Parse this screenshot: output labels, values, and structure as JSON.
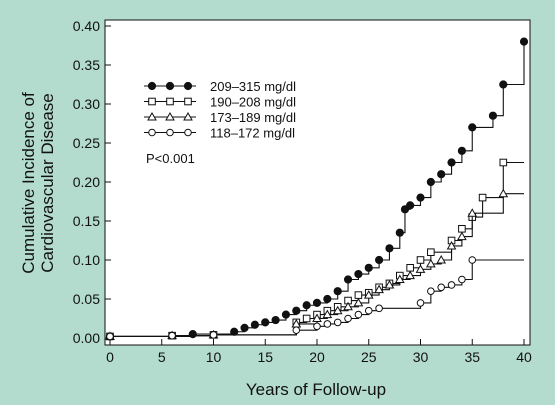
{
  "chart_data": {
    "type": "line",
    "step": true,
    "ylabel_line1": "Cumulative Incidence of",
    "ylabel_line2": "Cardiovascular Disease",
    "xlabel": "Years of Follow-up",
    "xlim": [
      0,
      40
    ],
    "ylim": [
      0,
      0.4
    ],
    "xticks": [
      "0",
      "5",
      "10",
      "15",
      "20",
      "25",
      "30",
      "35",
      "40"
    ],
    "yticks": [
      "0.00",
      "0.05",
      "0.10",
      "0.15",
      "0.20",
      "0.25",
      "0.30",
      "0.35",
      "0.40"
    ],
    "annotation": "P<0.001",
    "legend_position": "top-left",
    "series": [
      {
        "name": "209–315 mg/dl",
        "marker": "filled-circle",
        "points": [
          [
            0,
            0.002
          ],
          [
            8,
            0.005
          ],
          [
            12,
            0.008
          ],
          [
            13,
            0.013
          ],
          [
            14,
            0.017
          ],
          [
            15,
            0.02
          ],
          [
            16,
            0.023
          ],
          [
            17,
            0.03
          ],
          [
            18,
            0.035
          ],
          [
            19,
            0.042
          ],
          [
            20,
            0.045
          ],
          [
            21,
            0.05
          ],
          [
            22,
            0.06
          ],
          [
            23,
            0.075
          ],
          [
            24,
            0.082
          ],
          [
            25,
            0.09
          ],
          [
            26,
            0.1
          ],
          [
            27,
            0.115
          ],
          [
            28,
            0.135
          ],
          [
            28.5,
            0.165
          ],
          [
            29,
            0.17
          ],
          [
            30,
            0.18
          ],
          [
            31,
            0.2
          ],
          [
            32,
            0.21
          ],
          [
            33,
            0.225
          ],
          [
            34,
            0.24
          ],
          [
            35,
            0.27
          ],
          [
            37,
            0.285
          ],
          [
            38,
            0.325
          ],
          [
            40,
            0.38
          ]
        ]
      },
      {
        "name": "190–208 mg/dl",
        "marker": "open-square",
        "points": [
          [
            0,
            0.002
          ],
          [
            6,
            0.003
          ],
          [
            10,
            0.004
          ],
          [
            18,
            0.02
          ],
          [
            19,
            0.025
          ],
          [
            20,
            0.03
          ],
          [
            21,
            0.035
          ],
          [
            22,
            0.04
          ],
          [
            23,
            0.048
          ],
          [
            24,
            0.055
          ],
          [
            25,
            0.058
          ],
          [
            26,
            0.065
          ],
          [
            27,
            0.07
          ],
          [
            28,
            0.08
          ],
          [
            29,
            0.09
          ],
          [
            30,
            0.1
          ],
          [
            31,
            0.11
          ],
          [
            33,
            0.125
          ],
          [
            34,
            0.14
          ],
          [
            35,
            0.155
          ],
          [
            36,
            0.18
          ],
          [
            38,
            0.225
          ],
          [
            40,
            0.225
          ]
        ]
      },
      {
        "name": "173–189 mg/dl",
        "marker": "open-triangle",
        "points": [
          [
            0,
            0.002
          ],
          [
            6,
            0.003
          ],
          [
            10,
            0.004
          ],
          [
            18,
            0.018
          ],
          [
            20,
            0.025
          ],
          [
            21,
            0.03
          ],
          [
            22,
            0.035
          ],
          [
            23,
            0.04
          ],
          [
            24,
            0.045
          ],
          [
            25,
            0.055
          ],
          [
            26,
            0.062
          ],
          [
            27,
            0.068
          ],
          [
            28,
            0.075
          ],
          [
            29,
            0.08
          ],
          [
            30,
            0.088
          ],
          [
            31,
            0.095
          ],
          [
            32,
            0.1
          ],
          [
            33,
            0.118
          ],
          [
            34,
            0.13
          ],
          [
            35,
            0.16
          ],
          [
            38,
            0.185
          ],
          [
            40,
            0.185
          ]
        ]
      },
      {
        "name": "118–172 mg/dl",
        "marker": "open-circle",
        "points": [
          [
            0,
            0.002
          ],
          [
            6,
            0.003
          ],
          [
            10,
            0.004
          ],
          [
            18,
            0.01
          ],
          [
            20,
            0.015
          ],
          [
            21,
            0.018
          ],
          [
            22,
            0.02
          ],
          [
            23,
            0.025
          ],
          [
            24,
            0.03
          ],
          [
            25,
            0.035
          ],
          [
            26,
            0.038
          ],
          [
            30,
            0.045
          ],
          [
            31,
            0.06
          ],
          [
            32,
            0.065
          ],
          [
            33,
            0.068
          ],
          [
            34,
            0.075
          ],
          [
            35,
            0.1
          ],
          [
            40,
            0.1
          ]
        ]
      }
    ]
  }
}
